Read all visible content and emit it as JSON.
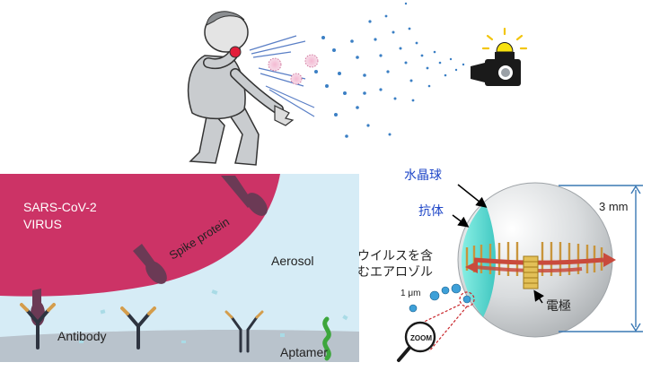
{
  "virus_panel": {
    "virus_label_line1": "SARS-CoV-2",
    "virus_label_line2": "VIRUS",
    "spike_label": "Spike protein",
    "aerosol_label": "Aerosol",
    "antibody_label": "Antibody",
    "aptamer_label": "Aptamer"
  },
  "sensor_panel": {
    "crystal_label": "水晶球",
    "antibody_label": "抗体",
    "size_label": "3 mm",
    "aerosol_label_line1": "ウイルスを含",
    "aerosol_label_line2": "むエアロゾル",
    "particle_size_label": "1 μm",
    "electrode_label": "電極",
    "zoom_label": "ZOOM"
  },
  "colors": {
    "virus": "#cc3366",
    "spike": "#6b3a55",
    "aerosol_bg": "#d6ecf6",
    "droplet": "#3b7fc4",
    "sphere": "#d5d8da",
    "antibody_cap": "#5ce0d4",
    "arrow": "#c94a3c",
    "electrode": "#c8a227",
    "label_blue": "#1f47c8"
  }
}
